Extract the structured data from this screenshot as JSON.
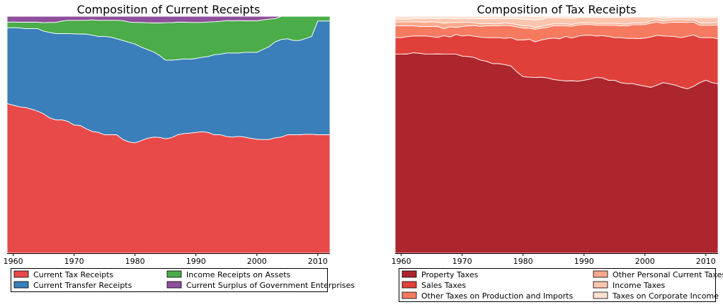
{
  "chart_data": [
    {
      "type": "area",
      "stacked": "percent",
      "title": "Composition of Current Receipts",
      "xlabel": "",
      "ylabel": "",
      "xlim": [
        1959,
        2012
      ],
      "ylim": [
        0,
        1
      ],
      "xticks": [
        "1960",
        "1970",
        "1980",
        "1990",
        "2000",
        "2010"
      ],
      "grid": false,
      "legend_position": "bottom",
      "x": [
        1959,
        1960,
        1961,
        1962,
        1963,
        1964,
        1965,
        1966,
        1967,
        1968,
        1969,
        1970,
        1971,
        1972,
        1973,
        1974,
        1975,
        1976,
        1977,
        1978,
        1979,
        1980,
        1981,
        1982,
        1983,
        1984,
        1985,
        1986,
        1987,
        1988,
        1989,
        1990,
        1991,
        1992,
        1993,
        1994,
        1995,
        1996,
        1997,
        1998,
        1999,
        2000,
        2001,
        2002,
        2003,
        2004,
        2005,
        2006,
        2007,
        2008,
        2009,
        2010,
        2011,
        2012
      ],
      "series": [
        {
          "name": "Current Tax Receipts",
          "color": "#e84a4a",
          "values": [
            0.632,
            0.625,
            0.618,
            0.615,
            0.608,
            0.6,
            0.588,
            0.571,
            0.563,
            0.563,
            0.556,
            0.541,
            0.539,
            0.525,
            0.514,
            0.51,
            0.5,
            0.5,
            0.5,
            0.48,
            0.47,
            0.466,
            0.475,
            0.485,
            0.49,
            0.489,
            0.483,
            0.488,
            0.5,
            0.505,
            0.507,
            0.51,
            0.513,
            0.51,
            0.5,
            0.5,
            0.493,
            0.49,
            0.493,
            0.49,
            0.485,
            0.481,
            0.48,
            0.48,
            0.487,
            0.49,
            0.5,
            0.5,
            0.5,
            0.502,
            0.502,
            0.5,
            0.5,
            0.5
          ]
        },
        {
          "name": "Current Transfer Receipts",
          "color": "#3a7fba",
          "values": [
            0.319,
            0.327,
            0.333,
            0.333,
            0.34,
            0.348,
            0.349,
            0.361,
            0.364,
            0.364,
            0.371,
            0.385,
            0.386,
            0.4,
            0.406,
            0.405,
            0.415,
            0.412,
            0.405,
            0.418,
            0.42,
            0.417,
            0.395,
            0.375,
            0.36,
            0.346,
            0.332,
            0.327,
            0.317,
            0.315,
            0.312,
            0.312,
            0.314,
            0.32,
            0.338,
            0.34,
            0.352,
            0.355,
            0.352,
            0.358,
            0.363,
            0.367,
            0.38,
            0.392,
            0.405,
            0.412,
            0.405,
            0.398,
            0.398,
            0.404,
            0.413,
            0.48,
            0.48,
            0.48
          ]
        },
        {
          "name": "Income Receipts on Assets",
          "color": "#4aad4a",
          "values": [
            0.024,
            0.024,
            0.024,
            0.027,
            0.027,
            0.027,
            0.036,
            0.042,
            0.047,
            0.053,
            0.056,
            0.057,
            0.058,
            0.058,
            0.065,
            0.068,
            0.068,
            0.071,
            0.078,
            0.084,
            0.086,
            0.091,
            0.104,
            0.113,
            0.122,
            0.137,
            0.158,
            0.158,
            0.158,
            0.155,
            0.155,
            0.152,
            0.147,
            0.146,
            0.139,
            0.139,
            0.137,
            0.136,
            0.137,
            0.133,
            0.133,
            0.133,
            0.125,
            0.116,
            0.098,
            0.098,
            0.095,
            0.102,
            0.102,
            0.094,
            0.085,
            0.02,
            0.02,
            0.02
          ]
        },
        {
          "name": "Current Surplus of Government Enterprises",
          "color": "#8e4f9c",
          "values": [
            0.025,
            0.024,
            0.025,
            0.025,
            0.025,
            0.025,
            0.027,
            0.026,
            0.026,
            0.02,
            0.017,
            0.017,
            0.017,
            0.017,
            0.015,
            0.017,
            0.017,
            0.017,
            0.017,
            0.018,
            0.024,
            0.026,
            0.026,
            0.027,
            0.028,
            0.028,
            0.027,
            0.027,
            0.025,
            0.025,
            0.026,
            0.026,
            0.026,
            0.024,
            0.023,
            0.021,
            0.018,
            0.019,
            0.018,
            0.019,
            0.019,
            0.019,
            0.015,
            0.012,
            0.01,
            0,
            0,
            0,
            0,
            0,
            0,
            0,
            0,
            0
          ]
        }
      ]
    },
    {
      "type": "area",
      "stacked": "percent",
      "title": "Composition of Tax Receipts",
      "xlabel": "",
      "ylabel": "",
      "xlim": [
        1959,
        2012
      ],
      "ylim": [
        0,
        1
      ],
      "xticks": [
        "1960",
        "1970",
        "1980",
        "1990",
        "2000",
        "2010"
      ],
      "grid": false,
      "legend_position": "bottom",
      "x": [
        1959,
        1960,
        1961,
        1962,
        1963,
        1964,
        1965,
        1966,
        1967,
        1968,
        1969,
        1970,
        1971,
        1972,
        1973,
        1974,
        1975,
        1976,
        1977,
        1978,
        1979,
        1980,
        1981,
        1982,
        1983,
        1984,
        1985,
        1986,
        1987,
        1988,
        1989,
        1990,
        1991,
        1992,
        1993,
        1994,
        1995,
        1996,
        1997,
        1998,
        1999,
        2000,
        2001,
        2002,
        2003,
        2004,
        2005,
        2006,
        2007,
        2008,
        2009,
        2010,
        2011,
        2012
      ],
      "series": [
        {
          "name": "Property Taxes",
          "color": "#ad252d",
          "values": [
            0.84,
            0.84,
            0.841,
            0.846,
            0.844,
            0.84,
            0.84,
            0.841,
            0.84,
            0.84,
            0.84,
            0.832,
            0.83,
            0.826,
            0.815,
            0.81,
            0.8,
            0.8,
            0.796,
            0.79,
            0.765,
            0.745,
            0.743,
            0.742,
            0.743,
            0.74,
            0.733,
            0.73,
            0.727,
            0.728,
            0.726,
            0.73,
            0.735,
            0.742,
            0.74,
            0.73,
            0.73,
            0.72,
            0.716,
            0.716,
            0.71,
            0.705,
            0.7,
            0.71,
            0.72,
            0.715,
            0.709,
            0.7,
            0.694,
            0.705,
            0.72,
            0.73,
            0.72,
            0.715
          ]
        },
        {
          "name": "Sales Taxes",
          "color": "#e0403a",
          "values": [
            0.07,
            0.07,
            0.073,
            0.071,
            0.073,
            0.077,
            0.074,
            0.07,
            0.078,
            0.073,
            0.083,
            0.085,
            0.09,
            0.09,
            0.097,
            0.1,
            0.11,
            0.11,
            0.111,
            0.12,
            0.135,
            0.155,
            0.16,
            0.15,
            0.157,
            0.165,
            0.175,
            0.175,
            0.188,
            0.18,
            0.19,
            0.19,
            0.185,
            0.175,
            0.178,
            0.185,
            0.18,
            0.19,
            0.191,
            0.191,
            0.196,
            0.203,
            0.213,
            0.21,
            0.197,
            0.201,
            0.205,
            0.21,
            0.222,
            0.216,
            0.19,
            0.18,
            0.19,
            0.19
          ]
        },
        {
          "name": "Other Taxes on Production and Imports",
          "color": "#f67a60",
          "values": [
            0.05,
            0.05,
            0.046,
            0.043,
            0.04,
            0.04,
            0.043,
            0.046,
            0.03,
            0.043,
            0.03,
            0.04,
            0.04,
            0.045,
            0.045,
            0.05,
            0.05,
            0.05,
            0.055,
            0.05,
            0.055,
            0.05,
            0.047,
            0.053,
            0.05,
            0.048,
            0.052,
            0.055,
            0.045,
            0.05,
            0.047,
            0.045,
            0.045,
            0.045,
            0.044,
            0.047,
            0.052,
            0.05,
            0.052,
            0.057,
            0.058,
            0.057,
            0.058,
            0.056,
            0.053,
            0.058,
            0.061,
            0.065,
            0.058,
            0.054,
            0.052,
            0.052,
            0.052,
            0.058
          ]
        },
        {
          "name": "Other Personal Current Taxes",
          "color": "#f9a98c",
          "values": [
            0.016,
            0.016,
            0.016,
            0.017,
            0.019,
            0.018,
            0.02,
            0.018,
            0.023,
            0.017,
            0.021,
            0.017,
            0.015,
            0.012,
            0.011,
            0.01,
            0.008,
            0.008,
            0.01,
            0.01,
            0.01,
            0.01,
            0.01,
            0.008,
            0.008,
            0.01,
            0.008,
            0.008,
            0.008,
            0.008,
            0.008,
            0.007,
            0.008,
            0.008,
            0.008,
            0.008,
            0.008,
            0.008,
            0.008,
            0.008,
            0.008,
            0.008,
            0.01,
            0.01,
            0.01,
            0.01,
            0.01,
            0.01,
            0.01,
            0.01,
            0.01,
            0.01,
            0.01,
            0.01
          ]
        },
        {
          "name": "Income Taxes",
          "color": "#fcc5ae",
          "values": [
            0.012,
            0.012,
            0.012,
            0.013,
            0.015,
            0.015,
            0.015,
            0.015,
            0.02,
            0.018,
            0.016,
            0.018,
            0.015,
            0.017,
            0.022,
            0.02,
            0.022,
            0.022,
            0.018,
            0.02,
            0.025,
            0.027,
            0.027,
            0.031,
            0.029,
            0.03,
            0.026,
            0.026,
            0.025,
            0.025,
            0.024,
            0.023,
            0.022,
            0.025,
            0.025,
            0.025,
            0.025,
            0.027,
            0.028,
            0.025,
            0.025,
            0.024,
            0.016,
            0.01,
            0.01,
            0.01,
            0.01,
            0.01,
            0.011,
            0.009,
            0.022,
            0.022,
            0.022,
            0.021
          ]
        },
        {
          "name": "Taxes on Corporate Income",
          "color": "#fde0d2",
          "values": [
            0.012,
            0.012,
            0.012,
            0.01,
            0.009,
            0.01,
            0.008,
            0.01,
            0.009,
            0.009,
            0.01,
            0.008,
            0.01,
            0.01,
            0.01,
            0.01,
            0.01,
            0.01,
            0.01,
            0.01,
            0.01,
            0.013,
            0.013,
            0.016,
            0.013,
            0.007,
            0.006,
            0.006,
            0.007,
            0.009,
            0.005,
            0.005,
            0.005,
            0.005,
            0.005,
            0.005,
            0.005,
            0.005,
            0.005,
            0.003,
            0.003,
            0.003,
            0.003,
            0.004,
            0.01,
            0.006,
            0.005,
            0.005,
            0.005,
            0.006,
            0.006,
            0.006,
            0.006,
            0.006
          ]
        }
      ]
    }
  ]
}
